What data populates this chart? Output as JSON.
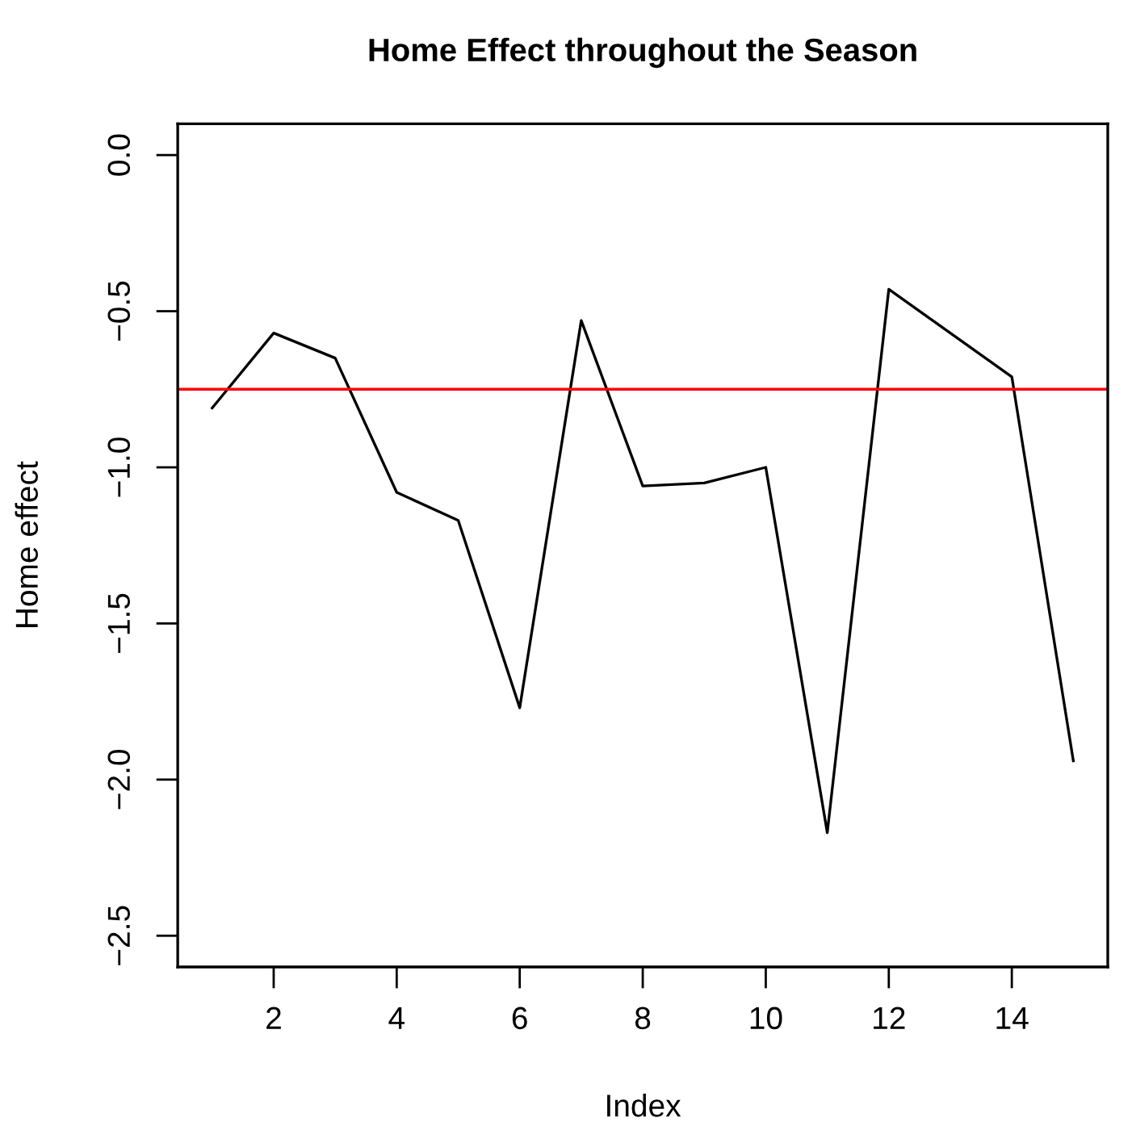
{
  "chart_data": {
    "type": "line",
    "title": "Home Effect throughout the Season",
    "xlabel": "Index",
    "ylabel": "Home effect",
    "x": [
      1,
      2,
      3,
      4,
      5,
      6,
      7,
      8,
      9,
      10,
      11,
      12,
      13,
      14,
      15
    ],
    "series": [
      {
        "color": "#000000",
        "values": [
          -0.81,
          -0.57,
          -0.65,
          -1.08,
          -1.17,
          -1.77,
          -0.53,
          -1.06,
          -1.05,
          -1.0,
          -2.17,
          -0.43,
          -0.57,
          -0.71,
          -1.94
        ]
      }
    ],
    "xlim": [
      0.44,
      15.56
    ],
    "ylim": [
      -2.6,
      0.1
    ],
    "xticks": [
      2,
      4,
      6,
      8,
      10,
      12,
      14
    ],
    "yticks": [
      {
        "value": -2.5,
        "label": "−2.5"
      },
      {
        "value": -2.0,
        "label": "−2.0"
      },
      {
        "value": -1.5,
        "label": "−1.5"
      },
      {
        "value": -1.0,
        "label": "−1.0"
      },
      {
        "value": -0.5,
        "label": "−0.5"
      },
      {
        "value": 0,
        "label": "0.0"
      }
    ],
    "ref_lines": [
      {
        "axis": "y",
        "value": -0.75,
        "color": "#ff0000"
      }
    ],
    "grid": false,
    "legend": false,
    "marker": "none",
    "line_style": "solid"
  }
}
